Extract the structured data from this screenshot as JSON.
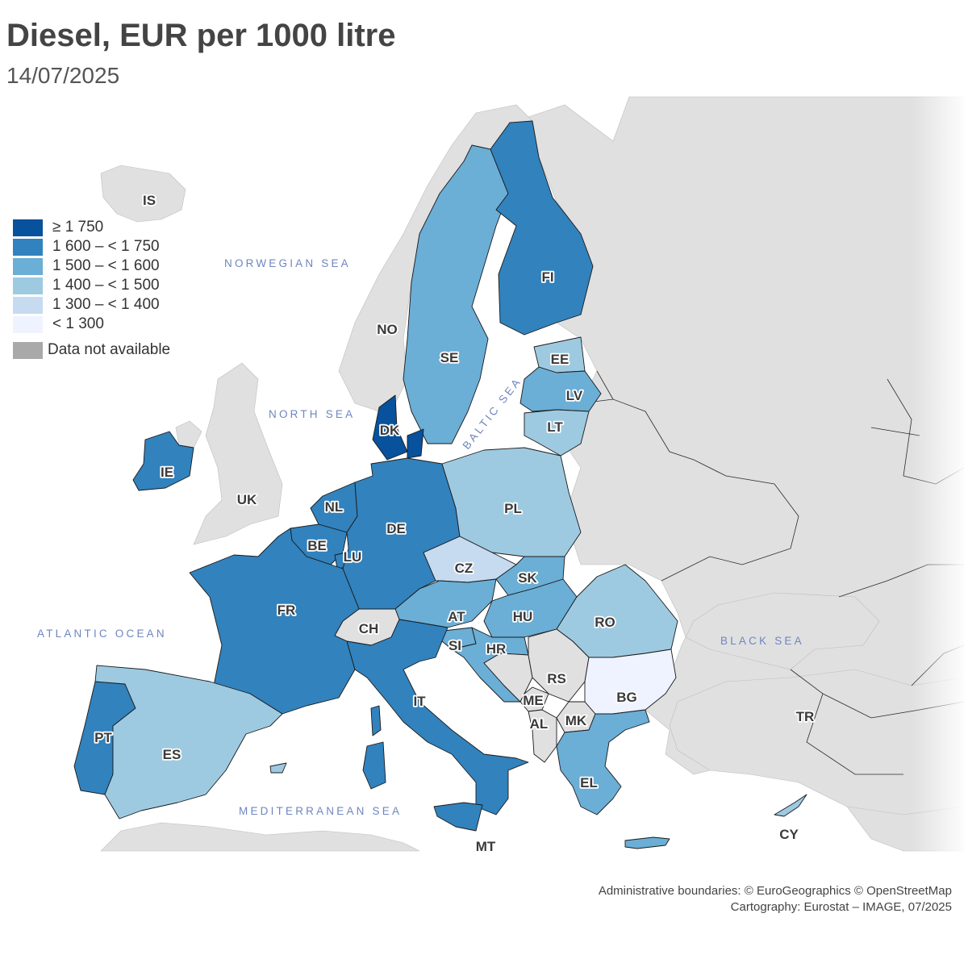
{
  "title": "Diesel, EUR per 1000 litre",
  "subtitle": "14/07/2025",
  "legend": {
    "classes": [
      {
        "label": "≥ 1 750",
        "color": "#08519c"
      },
      {
        "label": "1 600 – < 1 750",
        "color": "#3182bd"
      },
      {
        "label": "1 500 – < 1 600",
        "color": "#6baed6"
      },
      {
        "label": "1 400 – < 1 500",
        "color": "#9ecae1"
      },
      {
        "label": "1 300 – < 1 400",
        "color": "#c6dbef"
      },
      {
        "label": "< 1 300",
        "color": "#eff3ff"
      }
    ],
    "na_label": "Data not available",
    "na_color": "#a9a9a9"
  },
  "seas": {
    "norwegian": "NORWEGIAN SEA",
    "north": "NORTH SEA",
    "baltic": "BALTIC SEA",
    "atlantic": "ATLANTIC OCEAN",
    "black": "BLACK SEA",
    "mediterranean": "MEDITERRANEAN SEA"
  },
  "countries": {
    "IS": "IS",
    "NO": "NO",
    "SE": "SE",
    "FI": "FI",
    "EE": "EE",
    "LV": "LV",
    "LT": "LT",
    "DK": "DK",
    "IE": "IE",
    "UK": "UK",
    "NL": "NL",
    "BE": "BE",
    "LU": "LU",
    "DE": "DE",
    "PL": "PL",
    "CZ": "CZ",
    "SK": "SK",
    "AT": "AT",
    "HU": "HU",
    "RO": "RO",
    "CH": "CH",
    "FR": "FR",
    "SI": "SI",
    "HR": "HR",
    "RS": "RS",
    "BG": "BG",
    "ME": "ME",
    "AL": "AL",
    "MK": "MK",
    "IT": "IT",
    "EL": "EL",
    "TR": "TR",
    "PT": "PT",
    "ES": "ES",
    "CY": "CY",
    "MT": "MT"
  },
  "credits": {
    "line1": "Administrative boundaries: © EuroGeographics © OpenStreetMap",
    "line2": "Cartography: Eurostat – IMAGE, 07/2025"
  }
}
